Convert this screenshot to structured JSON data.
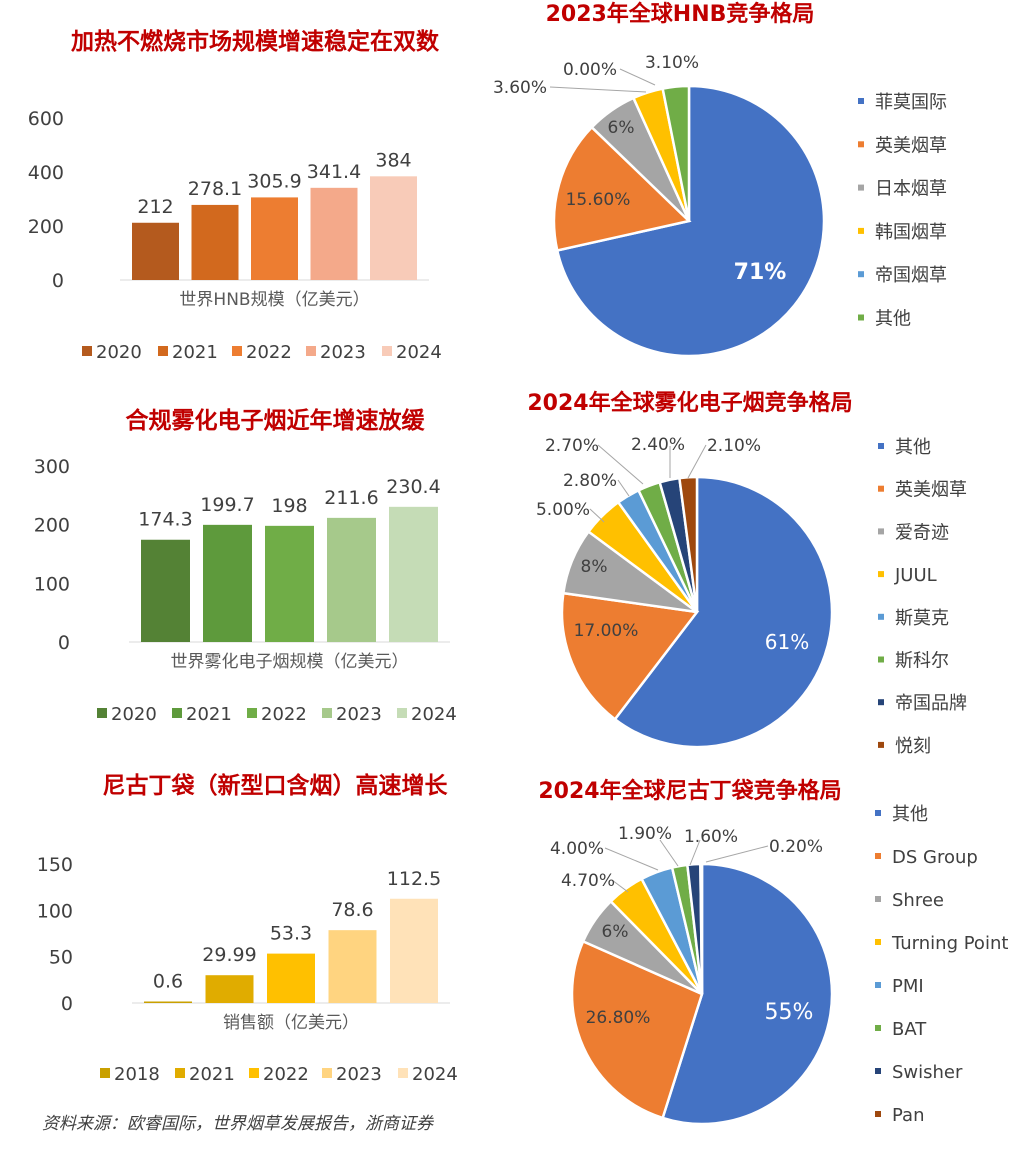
{
  "chart_data": [
    {
      "type": "bar",
      "title": "加热不燃烧市场规模增速稳定在双数",
      "xlabel": "世界HNB规模（亿美元）",
      "categories": [
        "2020",
        "2021",
        "2022",
        "2023",
        "2024"
      ],
      "values": [
        212,
        278.1,
        305.9,
        341.4,
        384
      ],
      "value_labels": [
        "212",
        "278.1",
        "305.9",
        "341.4",
        "384"
      ],
      "ylim": [
        0,
        600
      ],
      "yticks": [
        "0",
        "200",
        "400",
        "600"
      ],
      "colors": [
        "#b45a1e",
        "#d2691e",
        "#ed7d31",
        "#f4a98a",
        "#f8cbb8"
      ],
      "legend": [
        "2020",
        "2021",
        "2022",
        "2023",
        "2024"
      ],
      "legend_position": "bottom",
      "grid": false
    },
    {
      "type": "bar",
      "title": "合规雾化电子烟近年增速放缓",
      "xlabel": "世界雾化电子烟规模（亿美元）",
      "categories": [
        "2020",
        "2021",
        "2022",
        "2023",
        "2024"
      ],
      "values": [
        174.3,
        199.7,
        198,
        211.6,
        230.4
      ],
      "value_labels": [
        "174.3",
        "199.7",
        "198",
        "211.6",
        "230.4"
      ],
      "ylim": [
        0,
        300
      ],
      "yticks": [
        "0",
        "100",
        "200",
        "300"
      ],
      "colors": [
        "#548235",
        "#5e9a3c",
        "#70ad47",
        "#a6c98b",
        "#c5dcb6"
      ],
      "legend": [
        "2020",
        "2021",
        "2022",
        "2023",
        "2024"
      ],
      "legend_position": "bottom",
      "grid": false
    },
    {
      "type": "bar",
      "title": "尼古丁袋（新型口含烟）高速增长",
      "xlabel": "销售额（亿美元）",
      "categories": [
        "2018",
        "2021",
        "2022",
        "2023",
        "2024"
      ],
      "values": [
        0.6,
        29.99,
        53.3,
        78.6,
        112.5
      ],
      "value_labels": [
        "0.6",
        "29.99",
        "53.3",
        "78.6",
        "112.5"
      ],
      "ylim": [
        0,
        150
      ],
      "yticks": [
        "0",
        "50",
        "100",
        "150"
      ],
      "colors": [
        "#c9a000",
        "#e0ac00",
        "#ffc000",
        "#ffd480",
        "#ffe2b8"
      ],
      "legend": [
        "2018",
        "2021",
        "2022",
        "2023",
        "2024"
      ],
      "legend_position": "bottom",
      "grid": false
    },
    {
      "type": "pie",
      "title": "2023年全球HNB竞争格局",
      "labels": [
        "菲莫国际",
        "英美烟草",
        "日本烟草",
        "韩国烟草",
        "帝国烟草",
        "其他"
      ],
      "values": [
        71,
        15.6,
        6,
        3.6,
        0,
        3.1
      ],
      "value_labels": [
        "71%",
        "15.60%",
        "6%",
        "3.60%",
        "0.00%",
        "3.10%"
      ],
      "colors": [
        "#4472c4",
        "#ed7d31",
        "#a5a5a5",
        "#ffc000",
        "#5b9bd5",
        "#70ad47"
      ],
      "legend_position": "right"
    },
    {
      "type": "pie",
      "title": "2024年全球雾化电子烟竞争格局",
      "labels": [
        "其他",
        "英美烟草",
        "爱奇迹",
        "JUUL",
        "斯莫克",
        "斯科尔",
        "帝国品牌",
        "悦刻"
      ],
      "values": [
        61,
        17,
        8,
        5,
        2.8,
        2.7,
        2.4,
        2.1
      ],
      "value_labels": [
        "61%",
        "17.00%",
        "8%",
        "5.00%",
        "2.80%",
        "2.70%",
        "2.40%",
        "2.10%"
      ],
      "colors": [
        "#4472c4",
        "#ed7d31",
        "#a5a5a5",
        "#ffc000",
        "#5b9bd5",
        "#70ad47",
        "#264478",
        "#9e480e"
      ],
      "legend_position": "right"
    },
    {
      "type": "pie",
      "title": "2024年全球尼古丁袋竞争格局",
      "labels": [
        "其他",
        "DS Group",
        "Shree",
        "Turning Point",
        "PMI",
        "BAT",
        "Swisher",
        "Pan"
      ],
      "values": [
        55,
        26.8,
        6,
        4.7,
        4,
        1.9,
        1.6,
        0.2
      ],
      "value_labels": [
        "55%",
        "26.80%",
        "6%",
        "4.70%",
        "4.00%",
        "1.90%",
        "1.60%",
        "0.20%"
      ],
      "colors": [
        "#4472c4",
        "#ed7d31",
        "#a5a5a5",
        "#ffc000",
        "#5b9bd5",
        "#70ad47",
        "#264478",
        "#9e480e"
      ],
      "legend_position": "right"
    }
  ],
  "source": "资料来源：欧睿国际，世界烟草发展报告，浙商证券"
}
